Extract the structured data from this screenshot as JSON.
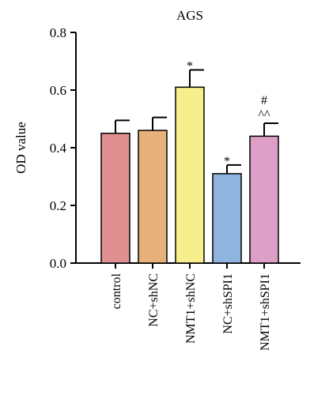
{
  "chart_data": {
    "type": "bar",
    "title": "AGS",
    "xlabel": "",
    "ylabel": "OD value",
    "ylim": [
      0,
      0.8
    ],
    "yticks": [
      "0.0",
      "0.2",
      "0.4",
      "0.6",
      "0.8"
    ],
    "yticks_values": [
      0,
      0.2,
      0.4,
      0.6,
      0.8
    ],
    "categories": [
      "control",
      "NC+shNC",
      "NMT1+shNC",
      "NC+shSPI1",
      "NMT1+shSPI1"
    ],
    "values": [
      0.45,
      0.46,
      0.61,
      0.31,
      0.44
    ],
    "errors": [
      0.045,
      0.045,
      0.06,
      0.03,
      0.045
    ],
    "colors": [
      "#e09090",
      "#e8b07a",
      "#f7ee8c",
      "#8fb4e0",
      "#dd9fc5"
    ],
    "annotations": [
      {
        "category": "NMT1+shNC",
        "text": "*"
      },
      {
        "category": "NC+shSPI1",
        "text": "*"
      },
      {
        "category": "NMT1+shSPI1",
        "text": "^^"
      },
      {
        "category": "NMT1+shSPI1",
        "text": "#"
      }
    ],
    "grid": false,
    "legend": "none"
  }
}
